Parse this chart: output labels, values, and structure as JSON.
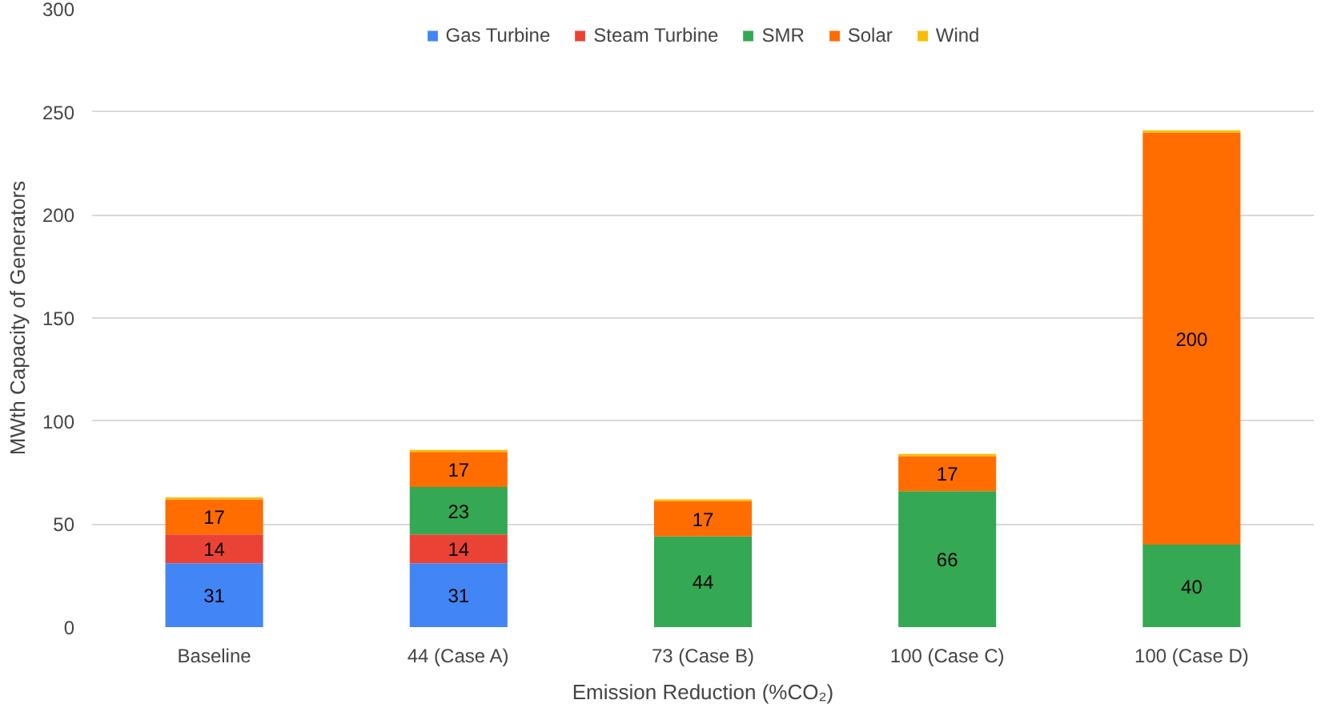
{
  "chart_data": {
    "type": "bar",
    "stacked": true,
    "xlabel": "Emission Reduction (%CO₂)",
    "ylabel": "MWth Capacity of Generators",
    "categories": [
      "Baseline",
      "44 (Case A)",
      "73 (Case B)",
      "100 (Case C)",
      "100 (Case D)"
    ],
    "series": [
      {
        "name": "Gas Turbine",
        "color": "#4285f4",
        "values": [
          31,
          31,
          0,
          0,
          0
        ],
        "value_labels": [
          "31",
          "31",
          null,
          null,
          null
        ]
      },
      {
        "name": "Steam Turbine",
        "color": "#ea4335",
        "values": [
          14,
          14,
          0,
          0,
          0
        ],
        "value_labels": [
          "14",
          "14",
          null,
          null,
          null
        ]
      },
      {
        "name": "SMR",
        "color": "#34a853",
        "values": [
          0,
          23,
          44,
          66,
          40
        ],
        "value_labels": [
          null,
          "23",
          "44",
          "66",
          "40"
        ]
      },
      {
        "name": "Solar",
        "color": "#ff6d01",
        "values": [
          17,
          17,
          17,
          17,
          200
        ],
        "value_labels": [
          "17",
          "17",
          "17",
          "17",
          "200"
        ]
      },
      {
        "name": "Wind",
        "color": "#fbbc04",
        "values": [
          1,
          1,
          1,
          1,
          1
        ],
        "value_labels": [
          null,
          null,
          null,
          null,
          null
        ]
      }
    ],
    "ylim": [
      0,
      300
    ],
    "yticks": [
      0,
      50,
      100,
      150,
      200,
      250,
      300
    ],
    "grid": "y",
    "legend": "top"
  }
}
